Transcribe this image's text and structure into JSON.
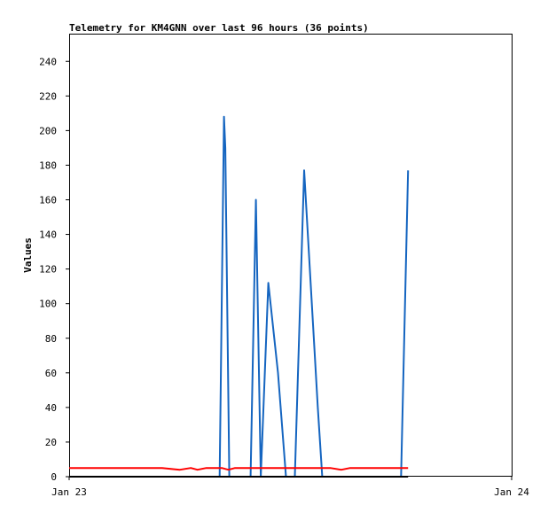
{
  "chart_data": {
    "type": "line",
    "title": "Telemetry for KM4GNN over last 96 hours (36 points)",
    "xlabel": "",
    "ylabel": "Values",
    "xlim": [
      0,
      1
    ],
    "ylim": [
      0,
      256
    ],
    "x_ticks": [
      {
        "label": "Jan 23",
        "x": 0
      },
      {
        "label": "Jan 24",
        "x": 1
      }
    ],
    "y_ticks": [
      0,
      20,
      40,
      60,
      80,
      100,
      120,
      140,
      160,
      180,
      200,
      220,
      240
    ],
    "grid": false,
    "series": [
      {
        "color": "#1565c0",
        "points": [
          [
            0.0,
            0
          ],
          [
            0.33,
            0
          ],
          [
            0.34,
            0
          ],
          [
            0.35,
            208
          ],
          [
            0.353,
            190
          ],
          [
            0.362,
            0
          ],
          [
            0.41,
            0
          ],
          [
            0.422,
            160
          ],
          [
            0.433,
            0
          ],
          [
            0.45,
            112
          ],
          [
            0.472,
            60
          ],
          [
            0.49,
            0
          ],
          [
            0.51,
            0
          ],
          [
            0.531,
            177
          ],
          [
            0.562,
            40
          ],
          [
            0.572,
            0
          ],
          [
            0.75,
            0
          ],
          [
            0.766,
            177
          ]
        ]
      },
      {
        "color": "#ff0000",
        "points": [
          [
            0.0,
            5
          ],
          [
            0.21,
            5
          ],
          [
            0.25,
            4
          ],
          [
            0.275,
            5
          ],
          [
            0.29,
            4
          ],
          [
            0.31,
            5
          ],
          [
            0.345,
            5
          ],
          [
            0.36,
            4
          ],
          [
            0.375,
            5
          ],
          [
            0.59,
            5
          ],
          [
            0.615,
            4
          ],
          [
            0.635,
            5
          ],
          [
            0.766,
            5
          ]
        ]
      },
      {
        "color": "#000000",
        "points": [
          [
            0.0,
            0
          ],
          [
            0.766,
            0
          ]
        ]
      }
    ]
  }
}
